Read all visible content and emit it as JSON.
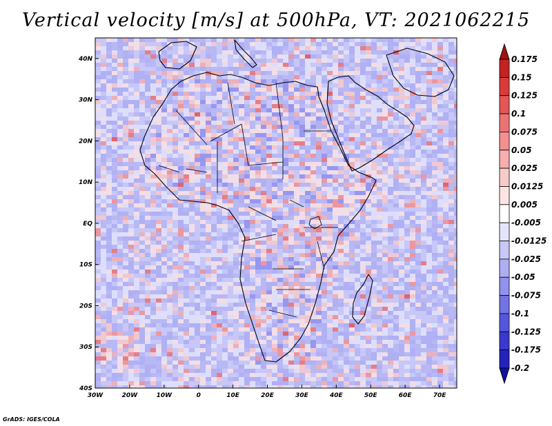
{
  "title": "Vertical velocity [m/s] at 500hPa, VT: 2021062215",
  "credit": "GrADS: IGES/COLA",
  "chart_data": {
    "type": "heatmap",
    "variable": "Vertical velocity",
    "units": "m/s",
    "level": "500hPa",
    "valid_time": "2021062215",
    "lon_range": [
      -30,
      75
    ],
    "lat_range": [
      -40,
      45
    ],
    "x_ticks": [
      {
        "value": -30,
        "label": "30W"
      },
      {
        "value": -20,
        "label": "20W"
      },
      {
        "value": -10,
        "label": "10W"
      },
      {
        "value": 0,
        "label": "0"
      },
      {
        "value": 10,
        "label": "10E"
      },
      {
        "value": 20,
        "label": "20E"
      },
      {
        "value": 30,
        "label": "30E"
      },
      {
        "value": 40,
        "label": "40E"
      },
      {
        "value": 50,
        "label": "50E"
      },
      {
        "value": 60,
        "label": "60E"
      },
      {
        "value": 70,
        "label": "70E"
      }
    ],
    "y_ticks": [
      {
        "value": 40,
        "label": "40N"
      },
      {
        "value": 30,
        "label": "30N"
      },
      {
        "value": 20,
        "label": "20N"
      },
      {
        "value": 10,
        "label": "10N"
      },
      {
        "value": 0,
        "label": "EQ"
      },
      {
        "value": -10,
        "label": "10S"
      },
      {
        "value": -20,
        "label": "20S"
      },
      {
        "value": -30,
        "label": "30S"
      },
      {
        "value": -40,
        "label": "40S"
      }
    ],
    "colorbar": {
      "levels": [
        "0.175",
        "0.15",
        "0.125",
        "0.1",
        "0.075",
        "0.05",
        "0.025",
        "0.0125",
        "0.005",
        "-0.005",
        "-0.0125",
        "-0.025",
        "-0.05",
        "-0.075",
        "-0.1",
        "-0.125",
        "-0.175",
        "-0.2"
      ],
      "colors": [
        "#9e1212",
        "#c42222",
        "#db3a3a",
        "#e45656",
        "#ec7373",
        "#f29090",
        "#f6aeae",
        "#f9caca",
        "#fce4e4",
        "#ffffff",
        "#e4e4fc",
        "#c9c9f8",
        "#aeaef3",
        "#9191ee",
        "#7373e6",
        "#5656dc",
        "#3939cf",
        "#2323bb",
        "#1010a0"
      ]
    }
  }
}
